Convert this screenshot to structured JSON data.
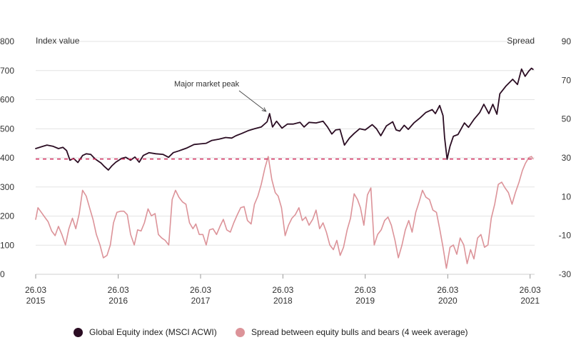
{
  "chart_data": {
    "type": "line",
    "left_axis": {
      "title": "Index value",
      "ticks": [
        0,
        100,
        200,
        300,
        400,
        500,
        600,
        700,
        800
      ],
      "range": [
        0,
        800
      ]
    },
    "right_axis": {
      "title": "Spread",
      "ticks": [
        -30,
        -10,
        10,
        30,
        50,
        70,
        90
      ],
      "range": [
        -30,
        90
      ]
    },
    "x_axis": {
      "range": [
        "2015-03-26",
        "2021-04-15"
      ],
      "ticks": [
        {
          "date": "2015-03-26",
          "label_top": "26.03",
          "label_bottom": "2015"
        },
        {
          "date": "2016-03-26",
          "label_top": "26.03",
          "label_bottom": "2016"
        },
        {
          "date": "2017-03-26",
          "label_top": "26.03",
          "label_bottom": "2017"
        },
        {
          "date": "2018-03-26",
          "label_top": "26.03",
          "label_bottom": "2018"
        },
        {
          "date": "2019-03-26",
          "label_top": "26.03",
          "label_bottom": "2019"
        },
        {
          "date": "2020-03-26",
          "label_top": "26.03",
          "label_bottom": "2020"
        },
        {
          "date": "2021-03-26",
          "label_top": "26.03",
          "label_bottom": "2021"
        }
      ]
    },
    "grid": true,
    "reference_line": {
      "axis": "right",
      "value": 29.4,
      "color": "#d12e5e",
      "style": "dashed"
    },
    "annotation": {
      "text": "Major market peak",
      "date": "2018-01-26",
      "value": 555
    },
    "series": [
      {
        "name": "Global Equity index (MSCI ACWI)",
        "axis": "left",
        "color": "#2b0d23",
        "points": [
          [
            "2015-03-26",
            432
          ],
          [
            "2015-04-20",
            438
          ],
          [
            "2015-05-15",
            444
          ],
          [
            "2015-06-10",
            440
          ],
          [
            "2015-07-05",
            432
          ],
          [
            "2015-07-25",
            436
          ],
          [
            "2015-08-10",
            425
          ],
          [
            "2015-08-25",
            392
          ],
          [
            "2015-09-10",
            398
          ],
          [
            "2015-09-29",
            384
          ],
          [
            "2015-10-20",
            408
          ],
          [
            "2015-11-05",
            414
          ],
          [
            "2015-11-25",
            412
          ],
          [
            "2015-12-15",
            396
          ],
          [
            "2016-01-10",
            382
          ],
          [
            "2016-01-25",
            370
          ],
          [
            "2016-02-11",
            358
          ],
          [
            "2016-02-26",
            372
          ],
          [
            "2016-03-15",
            385
          ],
          [
            "2016-04-10",
            398
          ],
          [
            "2016-04-28",
            402
          ],
          [
            "2016-05-20",
            392
          ],
          [
            "2016-06-08",
            403
          ],
          [
            "2016-06-27",
            385
          ],
          [
            "2016-07-15",
            408
          ],
          [
            "2016-08-10",
            418
          ],
          [
            "2016-09-09",
            414
          ],
          [
            "2016-10-10",
            412
          ],
          [
            "2016-11-04",
            402
          ],
          [
            "2016-11-25",
            418
          ],
          [
            "2016-12-20",
            424
          ],
          [
            "2017-01-25",
            434
          ],
          [
            "2017-02-25",
            446
          ],
          [
            "2017-03-26",
            448
          ],
          [
            "2017-04-20",
            450
          ],
          [
            "2017-05-15",
            460
          ],
          [
            "2017-06-15",
            464
          ],
          [
            "2017-07-15",
            470
          ],
          [
            "2017-08-11",
            468
          ],
          [
            "2017-08-30",
            476
          ],
          [
            "2017-09-25",
            484
          ],
          [
            "2017-10-25",
            494
          ],
          [
            "2017-11-20",
            500
          ],
          [
            "2017-12-20",
            506
          ],
          [
            "2018-01-15",
            524
          ],
          [
            "2018-01-26",
            552
          ],
          [
            "2018-02-08",
            506
          ],
          [
            "2018-02-26",
            526
          ],
          [
            "2018-03-22",
            502
          ],
          [
            "2018-04-15",
            516
          ],
          [
            "2018-05-10",
            516
          ],
          [
            "2018-06-10",
            522
          ],
          [
            "2018-06-28",
            506
          ],
          [
            "2018-07-20",
            522
          ],
          [
            "2018-08-20",
            520
          ],
          [
            "2018-09-20",
            526
          ],
          [
            "2018-10-10",
            506
          ],
          [
            "2018-10-29",
            482
          ],
          [
            "2018-11-15",
            496
          ],
          [
            "2018-12-04",
            498
          ],
          [
            "2018-12-24",
            444
          ],
          [
            "2019-01-15",
            468
          ],
          [
            "2019-02-05",
            484
          ],
          [
            "2019-03-01",
            500
          ],
          [
            "2019-03-26",
            496
          ],
          [
            "2019-04-26",
            514
          ],
          [
            "2019-05-15",
            500
          ],
          [
            "2019-06-03",
            476
          ],
          [
            "2019-06-28",
            510
          ],
          [
            "2019-07-26",
            524
          ],
          [
            "2019-08-10",
            496
          ],
          [
            "2019-08-26",
            492
          ],
          [
            "2019-09-15",
            512
          ],
          [
            "2019-10-03",
            498
          ],
          [
            "2019-10-28",
            520
          ],
          [
            "2019-11-25",
            538
          ],
          [
            "2019-12-20",
            556
          ],
          [
            "2020-01-17",
            566
          ],
          [
            "2020-01-31",
            552
          ],
          [
            "2020-02-19",
            580
          ],
          [
            "2020-03-05",
            545
          ],
          [
            "2020-03-12",
            470
          ],
          [
            "2020-03-23",
            395
          ],
          [
            "2020-04-05",
            440
          ],
          [
            "2020-04-20",
            474
          ],
          [
            "2020-05-10",
            480
          ],
          [
            "2020-06-08",
            520
          ],
          [
            "2020-06-26",
            505
          ],
          [
            "2020-07-20",
            532
          ],
          [
            "2020-08-15",
            556
          ],
          [
            "2020-09-02",
            584
          ],
          [
            "2020-09-24",
            552
          ],
          [
            "2020-10-12",
            584
          ],
          [
            "2020-10-30",
            550
          ],
          [
            "2020-11-12",
            620
          ],
          [
            "2020-12-08",
            646
          ],
          [
            "2021-01-08",
            670
          ],
          [
            "2021-01-29",
            652
          ],
          [
            "2021-02-16",
            705
          ],
          [
            "2021-03-04",
            680
          ],
          [
            "2021-03-20",
            698
          ],
          [
            "2021-04-01",
            708
          ],
          [
            "2021-04-08",
            704
          ]
        ]
      },
      {
        "name": "Spread between equity bulls and bears (4 week average)",
        "axis": "right",
        "color": "#dc9399",
        "points": [
          [
            "2015-03-26",
            -1.7
          ],
          [
            "2015-04-05",
            4.3
          ],
          [
            "2015-04-20",
            1.9
          ],
          [
            "2015-05-05",
            -0.5
          ],
          [
            "2015-05-20",
            -2.9
          ],
          [
            "2015-06-05",
            -7.7
          ],
          [
            "2015-06-20",
            -10.1
          ],
          [
            "2015-07-05",
            -5.3
          ],
          [
            "2015-07-20",
            -9.5
          ],
          [
            "2015-08-05",
            -14.9
          ],
          [
            "2015-08-20",
            -6.5
          ],
          [
            "2015-09-05",
            -1.1
          ],
          [
            "2015-09-20",
            -6.5
          ],
          [
            "2015-10-05",
            1.3
          ],
          [
            "2015-10-20",
            13.3
          ],
          [
            "2015-11-05",
            10.3
          ],
          [
            "2015-11-20",
            4.3
          ],
          [
            "2015-12-05",
            -1.7
          ],
          [
            "2015-12-20",
            -9.5
          ],
          [
            "2016-01-05",
            -14.9
          ],
          [
            "2016-01-20",
            -21.5
          ],
          [
            "2016-02-05",
            -20.3
          ],
          [
            "2016-02-20",
            -14.9
          ],
          [
            "2016-03-05",
            -3.5
          ],
          [
            "2016-03-20",
            1.9
          ],
          [
            "2016-04-05",
            2.5
          ],
          [
            "2016-04-20",
            2.5
          ],
          [
            "2016-05-05",
            0.7
          ],
          [
            "2016-05-20",
            -9.5
          ],
          [
            "2016-06-05",
            -14.9
          ],
          [
            "2016-06-20",
            -7.1
          ],
          [
            "2016-07-05",
            -7.7
          ],
          [
            "2016-07-20",
            -3.5
          ],
          [
            "2016-08-05",
            3.7
          ],
          [
            "2016-08-20",
            0.1
          ],
          [
            "2016-09-05",
            1.3
          ],
          [
            "2016-09-20",
            -9.5
          ],
          [
            "2016-10-05",
            -11.3
          ],
          [
            "2016-10-20",
            -12.5
          ],
          [
            "2016-11-05",
            -14.9
          ],
          [
            "2016-11-20",
            8.5
          ],
          [
            "2016-12-05",
            13.3
          ],
          [
            "2016-12-20",
            9.7
          ],
          [
            "2017-01-05",
            7.3
          ],
          [
            "2017-01-20",
            6.1
          ],
          [
            "2017-02-05",
            -3.5
          ],
          [
            "2017-02-20",
            -6.5
          ],
          [
            "2017-03-05",
            -4.1
          ],
          [
            "2017-03-20",
            -9.5
          ],
          [
            "2017-04-05",
            -9.5
          ],
          [
            "2017-04-20",
            -14.9
          ],
          [
            "2017-05-05",
            -7.1
          ],
          [
            "2017-05-20",
            -6.5
          ],
          [
            "2017-06-05",
            -9.5
          ],
          [
            "2017-06-20",
            -5.3
          ],
          [
            "2017-07-05",
            -1.7
          ],
          [
            "2017-07-20",
            -7.1
          ],
          [
            "2017-08-05",
            -8.3
          ],
          [
            "2017-08-20",
            -3.5
          ],
          [
            "2017-09-05",
            0.7
          ],
          [
            "2017-09-20",
            4.3
          ],
          [
            "2017-10-05",
            4.9
          ],
          [
            "2017-10-20",
            -2.3
          ],
          [
            "2017-11-05",
            -4.1
          ],
          [
            "2017-11-20",
            6.1
          ],
          [
            "2017-12-05",
            10.3
          ],
          [
            "2017-12-20",
            16.3
          ],
          [
            "2018-01-05",
            24.7
          ],
          [
            "2018-01-20",
            30.7
          ],
          [
            "2018-02-05",
            18.7
          ],
          [
            "2018-02-20",
            12.1
          ],
          [
            "2018-03-05",
            10.3
          ],
          [
            "2018-03-20",
            4.3
          ],
          [
            "2018-04-05",
            -10.1
          ],
          [
            "2018-04-20",
            -4.7
          ],
          [
            "2018-05-05",
            -1.1
          ],
          [
            "2018-05-20",
            0.7
          ],
          [
            "2018-06-05",
            4.3
          ],
          [
            "2018-06-20",
            -2.3
          ],
          [
            "2018-07-05",
            -0.5
          ],
          [
            "2018-07-20",
            -4.7
          ],
          [
            "2018-08-05",
            -1.7
          ],
          [
            "2018-08-20",
            3.1
          ],
          [
            "2018-09-05",
            -6.5
          ],
          [
            "2018-09-20",
            -3.5
          ],
          [
            "2018-10-05",
            -8.3
          ],
          [
            "2018-10-20",
            -14.9
          ],
          [
            "2018-11-05",
            -17.3
          ],
          [
            "2018-11-20",
            -12.5
          ],
          [
            "2018-12-05",
            -20.3
          ],
          [
            "2018-12-20",
            -16.1
          ],
          [
            "2019-01-05",
            -7.1
          ],
          [
            "2019-01-20",
            -1.1
          ],
          [
            "2019-02-05",
            11.5
          ],
          [
            "2019-02-20",
            8.5
          ],
          [
            "2019-03-05",
            4.3
          ],
          [
            "2019-03-20",
            -4.7
          ],
          [
            "2019-04-05",
            10.9
          ],
          [
            "2019-04-20",
            14.5
          ],
          [
            "2019-05-05",
            -14.9
          ],
          [
            "2019-05-20",
            -9.5
          ],
          [
            "2019-06-05",
            -7.1
          ],
          [
            "2019-06-20",
            -2.3
          ],
          [
            "2019-07-05",
            -0.5
          ],
          [
            "2019-07-20",
            -4.7
          ],
          [
            "2019-08-05",
            -12.5
          ],
          [
            "2019-08-20",
            -21.5
          ],
          [
            "2019-09-05",
            -14.9
          ],
          [
            "2019-09-20",
            -7.1
          ],
          [
            "2019-10-05",
            -2.3
          ],
          [
            "2019-10-20",
            -8.3
          ],
          [
            "2019-11-05",
            1.9
          ],
          [
            "2019-11-20",
            7.3
          ],
          [
            "2019-12-05",
            13.3
          ],
          [
            "2019-12-20",
            9.7
          ],
          [
            "2020-01-05",
            8.5
          ],
          [
            "2020-01-20",
            3.1
          ],
          [
            "2020-02-05",
            1.9
          ],
          [
            "2020-02-20",
            -7.1
          ],
          [
            "2020-03-05",
            -16.1
          ],
          [
            "2020-03-20",
            -26.9
          ],
          [
            "2020-04-05",
            -16.1
          ],
          [
            "2020-04-20",
            -14.9
          ],
          [
            "2020-05-05",
            -19.7
          ],
          [
            "2020-05-20",
            -11.3
          ],
          [
            "2020-06-05",
            -14.9
          ],
          [
            "2020-06-20",
            -24.5
          ],
          [
            "2020-07-05",
            -17.3
          ],
          [
            "2020-07-20",
            -22.1
          ],
          [
            "2020-08-05",
            -11.3
          ],
          [
            "2020-08-20",
            -9.5
          ],
          [
            "2020-09-05",
            -16.1
          ],
          [
            "2020-09-20",
            -14.9
          ],
          [
            "2020-10-05",
            -1.1
          ],
          [
            "2020-10-20",
            6.1
          ],
          [
            "2020-11-05",
            16.3
          ],
          [
            "2020-11-20",
            17.5
          ],
          [
            "2020-12-05",
            14.5
          ],
          [
            "2020-12-20",
            12.1
          ],
          [
            "2021-01-05",
            6.1
          ],
          [
            "2021-01-20",
            12.1
          ],
          [
            "2021-02-05",
            17.5
          ],
          [
            "2021-02-20",
            23.5
          ],
          [
            "2021-03-05",
            27.1
          ],
          [
            "2021-03-20",
            30.1
          ],
          [
            "2021-04-01",
            30.7
          ],
          [
            "2021-04-08",
            29.5
          ]
        ]
      }
    ]
  }
}
